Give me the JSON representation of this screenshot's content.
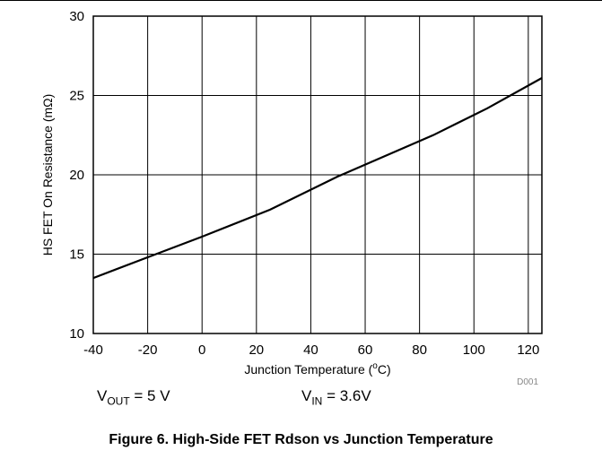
{
  "chart_data": {
    "type": "line",
    "xlabel": "Junction Temperature (",
    "xlabel_sup": "o",
    "xlabel_tail": "C)",
    "ylabel": "HS FET On Resistance (mΩ)",
    "xlim": [
      -40,
      125
    ],
    "ylim": [
      10,
      30
    ],
    "x_ticks": [
      -40,
      -20,
      0,
      20,
      40,
      60,
      80,
      100,
      120
    ],
    "y_ticks": [
      10,
      15,
      20,
      25,
      30
    ],
    "grid": true,
    "series": [
      {
        "x": [
          -40,
          -20,
          0,
          25,
          50,
          85,
          105,
          125
        ],
        "y": [
          13.5,
          14.8,
          16.1,
          17.8,
          19.9,
          22.5,
          24.2,
          26.1
        ]
      }
    ],
    "code": "D001"
  },
  "conditions": {
    "vout_main": "V",
    "vout_sub": "OUT",
    "vout_value": " = 5 V",
    "vin_main": "V",
    "vin_sub": "IN",
    "vin_value": " = 3.6V"
  },
  "caption": "Figure 6. High-Side FET Rdson vs Junction Temperature"
}
